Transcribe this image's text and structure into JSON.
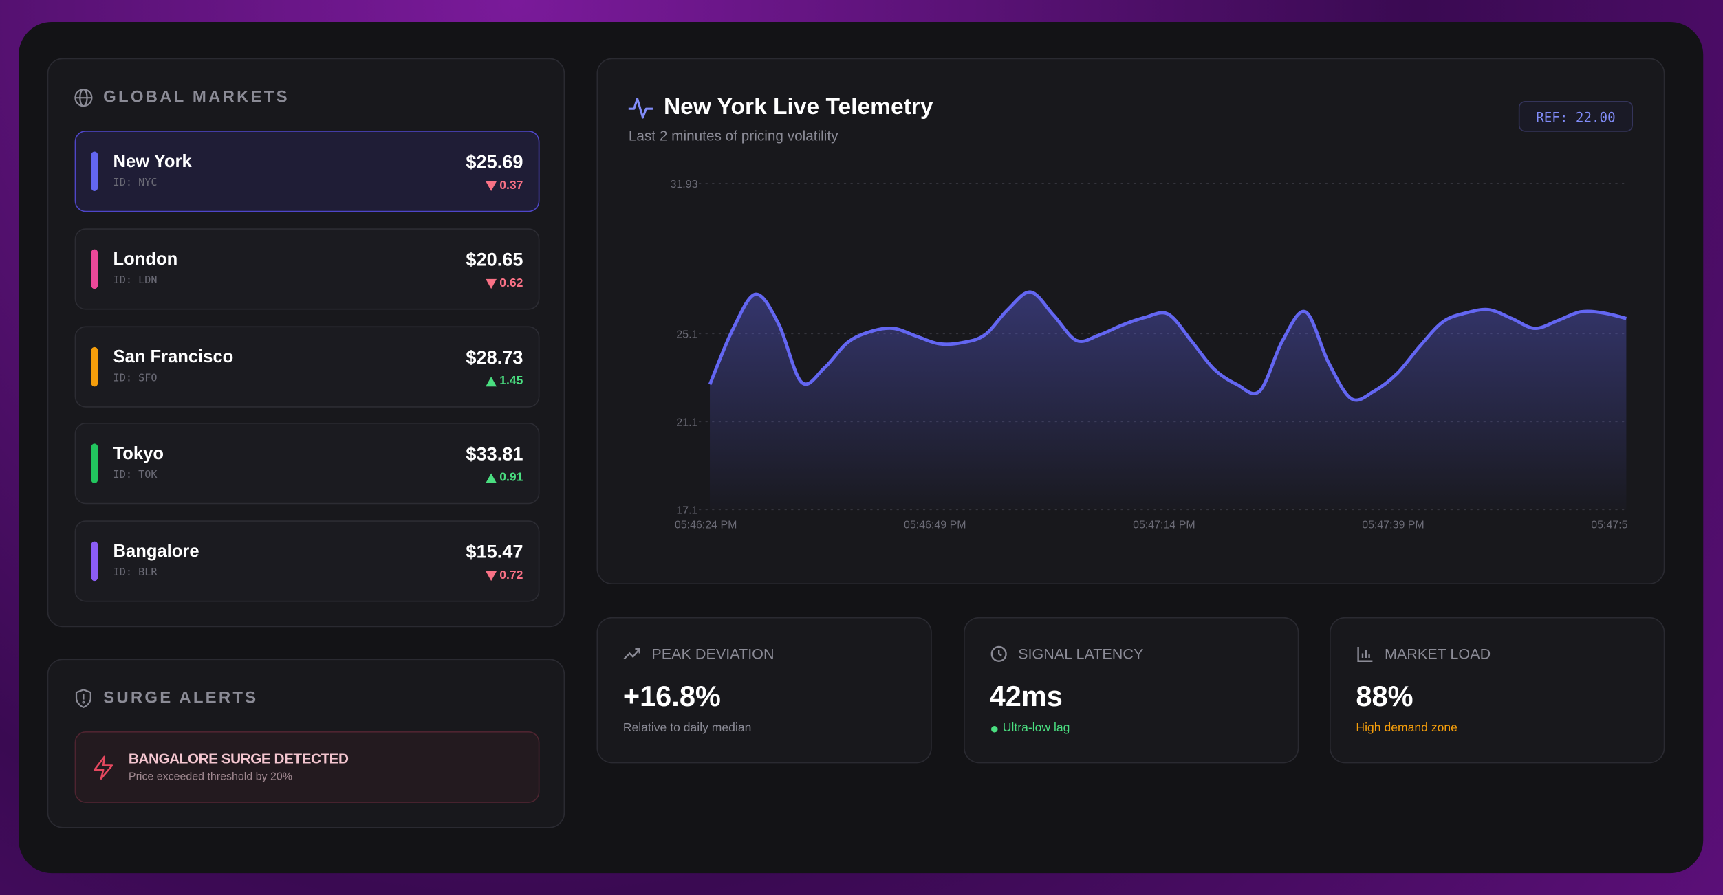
{
  "markets": {
    "title": "GLOBAL MARKETS",
    "items": [
      {
        "name": "New York",
        "id": "ID: NYC",
        "price": "$25.69",
        "change": "0.37",
        "trend": "down",
        "color": "#6366f1",
        "selected": true
      },
      {
        "name": "London",
        "id": "ID: LDN",
        "price": "$20.65",
        "change": "0.62",
        "trend": "down",
        "color": "#ec4899",
        "selected": false
      },
      {
        "name": "San Francisco",
        "id": "ID: SFO",
        "price": "$28.73",
        "change": "1.45",
        "trend": "up",
        "color": "#f59e0b",
        "selected": false
      },
      {
        "name": "Tokyo",
        "id": "ID: TOK",
        "price": "$33.81",
        "change": "0.91",
        "trend": "up",
        "color": "#22c55e",
        "selected": false
      },
      {
        "name": "Bangalore",
        "id": "ID: BLR",
        "price": "$15.47",
        "change": "0.72",
        "trend": "down",
        "color": "#8b5cf6",
        "selected": false
      }
    ]
  },
  "alerts": {
    "title": "SURGE ALERTS",
    "items": [
      {
        "title": "BANGALORE SURGE DETECTED",
        "text": "Price exceeded threshold by 20%"
      }
    ]
  },
  "chart_data": {
    "type": "line",
    "title": "New York Live Telemetry",
    "subtitle": "Last 2 minutes of pricing volatility",
    "badge": "REF: 22.00",
    "categories": [
      "05:46:24 PM",
      null,
      null,
      null,
      null,
      null,
      null,
      null,
      null,
      null,
      "05:46:49 PM",
      null,
      null,
      null,
      null,
      null,
      null,
      null,
      null,
      null,
      "05:47:14 PM",
      null,
      null,
      null,
      null,
      null,
      null,
      null,
      null,
      null,
      "05:47:39 PM",
      null,
      null,
      null,
      null,
      null,
      null,
      null,
      null,
      null,
      "05:47:5"
    ],
    "values": [
      22.79,
      25.29,
      26.89,
      25.54,
      22.89,
      23.54,
      24.69,
      25.19,
      25.34,
      24.99,
      24.64,
      24.69,
      25.04,
      26.19,
      26.99,
      25.94,
      24.79,
      25.04,
      25.49,
      25.84,
      25.99,
      24.79,
      23.49,
      22.79,
      22.49,
      24.79,
      26.09,
      23.79,
      22.14,
      22.49,
      23.29,
      24.54,
      25.64,
      26.04,
      26.19,
      25.79,
      25.34,
      25.69,
      26.09,
      26.04,
      25.79
    ],
    "color": "#6366f1",
    "ylim": [
      17.1,
      31.93
    ],
    "yticks": [
      17.1,
      21.1,
      25.1,
      31.93
    ],
    "grid": true
  },
  "stats": [
    {
      "label": "PEAK DEVIATION",
      "value": "+16.8%",
      "note": "Relative to daily median",
      "note_color": "#8b8b96",
      "icon": "trend"
    },
    {
      "label": "SIGNAL LATENCY",
      "value": "42ms",
      "note": "Ultra-low lag",
      "note_color": "#4ade80",
      "icon": "clock"
    },
    {
      "label": "MARKET LOAD",
      "value": "88%",
      "note": "High demand zone",
      "note_color": "#f59e0b",
      "icon": "bars"
    }
  ]
}
